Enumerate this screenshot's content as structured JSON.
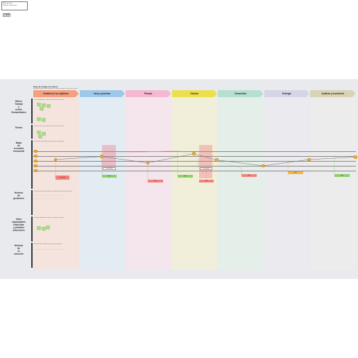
{
  "info_box": {
    "line1": "Mapa de viaje",
    "line2": "Plantilla colaborativa",
    "badge": "Lucid"
  },
  "board": {
    "title": "Flujo de trabajo del cliente",
    "subtitle": "Descripción general del recorrido de la persona desde el inicio hasta el final"
  },
  "stages": [
    {
      "label": "Establecer los objetivos",
      "color": "#f49f7e"
    },
    {
      "label": "Idear y priorizar",
      "color": "#9ec8ea"
    },
    {
      "label": "Planear",
      "color": "#f5b7d2"
    },
    {
      "label": "Diseñar",
      "color": "#ecdf4b"
    },
    {
      "label": "Desarrollar",
      "color": "#b5e0cf"
    },
    {
      "label": "Entregar",
      "color": "#d6d4e6"
    },
    {
      "label": "Analizar y monitorear",
      "color": "#d8d3b3"
    }
  ],
  "column_colors": [
    "#f5e4de",
    "#e3ecf3",
    "#f4e6ec",
    "#f1efd9",
    "#e4efe9",
    "#eaeaef",
    "#ececed"
  ],
  "lanes": [
    {
      "label": "Marco\nTrabajo\ny\nsector\nHumanidades",
      "desc": "Las herramientas que utiliza la persona en cada etapa"
    },
    {
      "label": "Tareas",
      "desc": "Las tareas clave que realiza la persona en cada etapa"
    },
    {
      "label": "Mapa\nde\nrecorrido\nemocional",
      "desc": "Los niveles emocionales de la persona en cada etapa"
    },
    {
      "label": "Historia\nde\ngestiones",
      "desc": "Las interacciones y los puntos de contacto clave durante el recorrido"
    },
    {
      "label": "Vales\ncapacidades\nimplícitas\ny posibles\nsoluciones",
      "desc": "Las oportunidades de mejora y las posibles soluciones"
    },
    {
      "label": "Historia\nde\nla\nsolución",
      "desc": "Resumen de la solución propuesta para la persona"
    }
  ],
  "emotion_levels": [
    5,
    4,
    3,
    2,
    1
  ],
  "emotion_points": [
    {
      "stage": 0,
      "level": 3.3
    },
    {
      "stage": 1,
      "level": 3.9
    },
    {
      "stage": 2,
      "level": 2.6
    },
    {
      "stage": 3,
      "level": 4.5
    },
    {
      "stage": 3.5,
      "level": 3.2
    },
    {
      "stage": 4.5,
      "level": 2.0
    },
    {
      "stage": 5.5,
      "level": 3.3
    },
    {
      "stage": 6.5,
      "level": 3.8
    }
  ],
  "cards": [
    {
      "label": "Oportunidad",
      "color": "red"
    },
    {
      "label": "Punto positivo",
      "color": "white"
    },
    {
      "label": "Logro",
      "color": "green"
    },
    {
      "label": "Punto negativo",
      "color": "white"
    },
    {
      "label": "Bajo",
      "color": "red"
    },
    {
      "label": "Logro",
      "color": "green"
    },
    {
      "label": "Bajo",
      "color": "red"
    },
    {
      "label": "Bajo",
      "color": "red"
    },
    {
      "label": "Alerta",
      "color": "orange"
    },
    {
      "label": "Logro",
      "color": "green"
    }
  ]
}
